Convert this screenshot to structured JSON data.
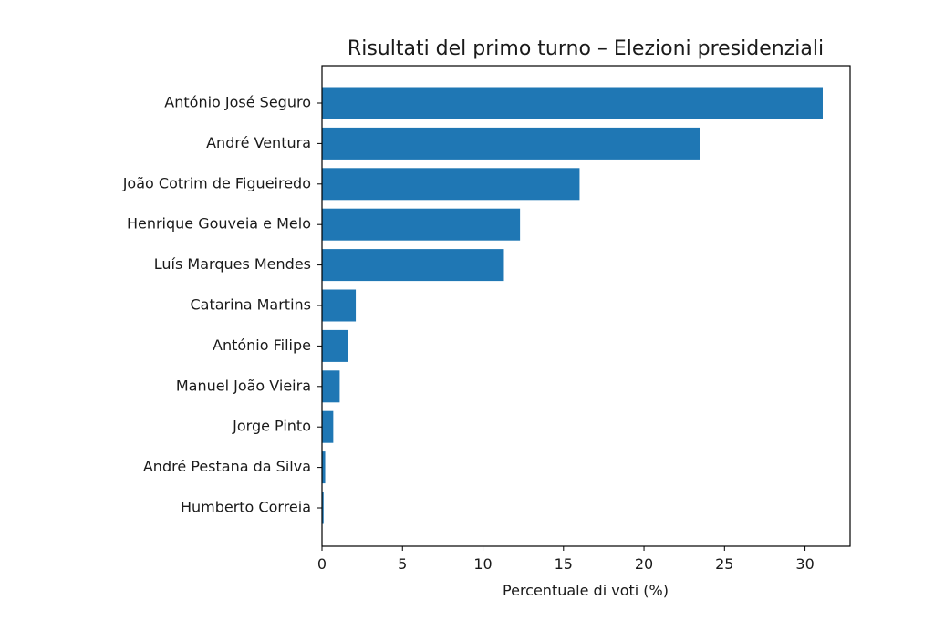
{
  "chart_data": {
    "type": "bar",
    "orientation": "horizontal",
    "title": "Risultati del primo turno – Elezioni presidenziali",
    "xlabel": "Percentuale di voti (%)",
    "ylabel": "",
    "xlim": [
      0,
      32.8
    ],
    "xticks": [
      0,
      5,
      10,
      15,
      20,
      25,
      30
    ],
    "grid": false,
    "bar_color": "#1f77b4",
    "categories": [
      "António José Seguro",
      "André Ventura",
      "João Cotrim de Figueiredo",
      "Henrique Gouveia e Melo",
      "Luís Marques Mendes",
      "Catarina Martins",
      "António Filipe",
      "Manuel João Vieira",
      "Jorge Pinto",
      "André Pestana da Silva",
      "Humberto Correia"
    ],
    "values": [
      31.1,
      23.5,
      16.0,
      12.3,
      11.3,
      2.1,
      1.6,
      1.1,
      0.7,
      0.2,
      0.1
    ]
  }
}
